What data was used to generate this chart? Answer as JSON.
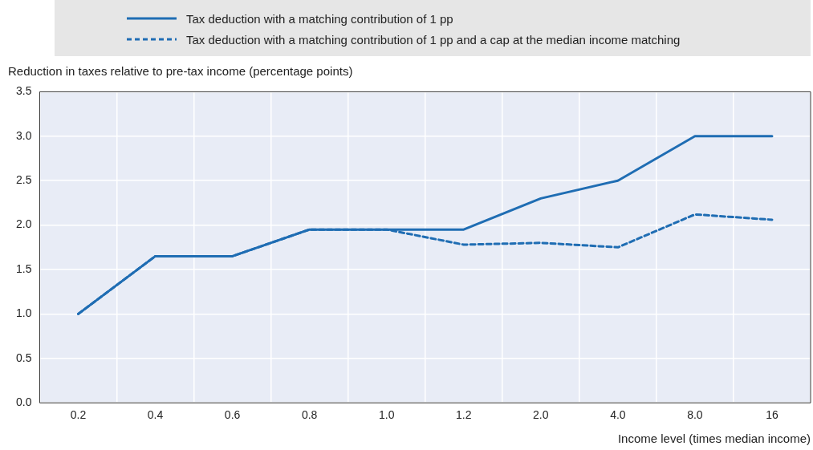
{
  "chart_data": {
    "type": "line",
    "xlabel": "Income level (times median income)",
    "ylabel": "Reduction in taxes relative to pre-tax income (percentage points)",
    "categories": [
      "0.2",
      "0.4",
      "0.6",
      "0.8",
      "1.0",
      "1.2",
      "2.0",
      "4.0",
      "8.0",
      "16"
    ],
    "series": [
      {
        "name": "Tax deduction with a matching contribution of 1 pp",
        "color": "#1f6db3",
        "line_style": "solid",
        "values": [
          1.0,
          1.65,
          1.65,
          1.95,
          1.95,
          1.95,
          2.3,
          2.5,
          3.0,
          3.0
        ]
      },
      {
        "name": "Tax deduction with a matching contribution of 1 pp and a cap at the median income matching",
        "color": "#1f6db3",
        "line_style": "dashed",
        "values": [
          1.0,
          1.65,
          1.65,
          1.95,
          1.95,
          1.78,
          1.8,
          1.75,
          2.12,
          2.06
        ]
      }
    ],
    "ylim": [
      0,
      3.5
    ],
    "yticks": [
      {
        "value": 0,
        "label": "0.0"
      },
      0.5,
      {
        "value": 1,
        "label": "1.0"
      },
      1.5,
      {
        "value": 2,
        "label": "2.0"
      },
      2.5,
      {
        "value": 3,
        "label": "3.0"
      },
      3.5
    ],
    "grid": true,
    "legend": "top",
    "marker": "none"
  }
}
